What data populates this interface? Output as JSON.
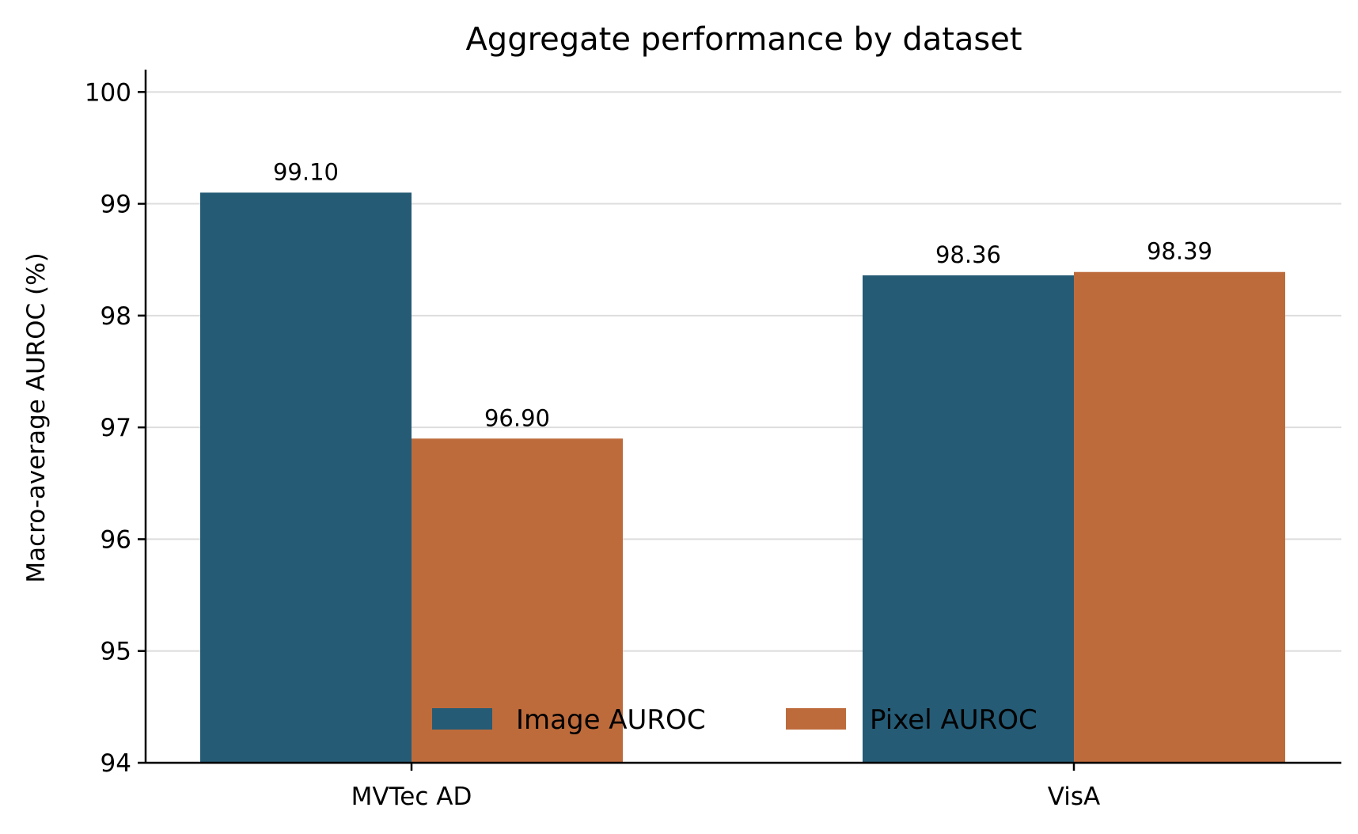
{
  "chart_data": {
    "type": "bar",
    "title": "Aggregate performance by dataset",
    "xlabel": "",
    "ylabel": "Macro-average AUROC (%)",
    "ylim": [
      94,
      100.2
    ],
    "yticks": [
      "94",
      "95",
      "96",
      "97",
      "98",
      "99",
      "100"
    ],
    "categories": [
      "MVTec AD",
      "VisA"
    ],
    "series": [
      {
        "name": "Image AUROC",
        "color": "#255b75",
        "values": [
          99.1,
          98.36
        ],
        "labels": [
          "99.10",
          "98.36"
        ]
      },
      {
        "name": "Pixel AUROC",
        "color": "#be6b3c",
        "values": [
          96.9,
          98.39
        ],
        "labels": [
          "96.90",
          "98.39"
        ]
      }
    ],
    "grid": true,
    "legend": "lower-center"
  }
}
